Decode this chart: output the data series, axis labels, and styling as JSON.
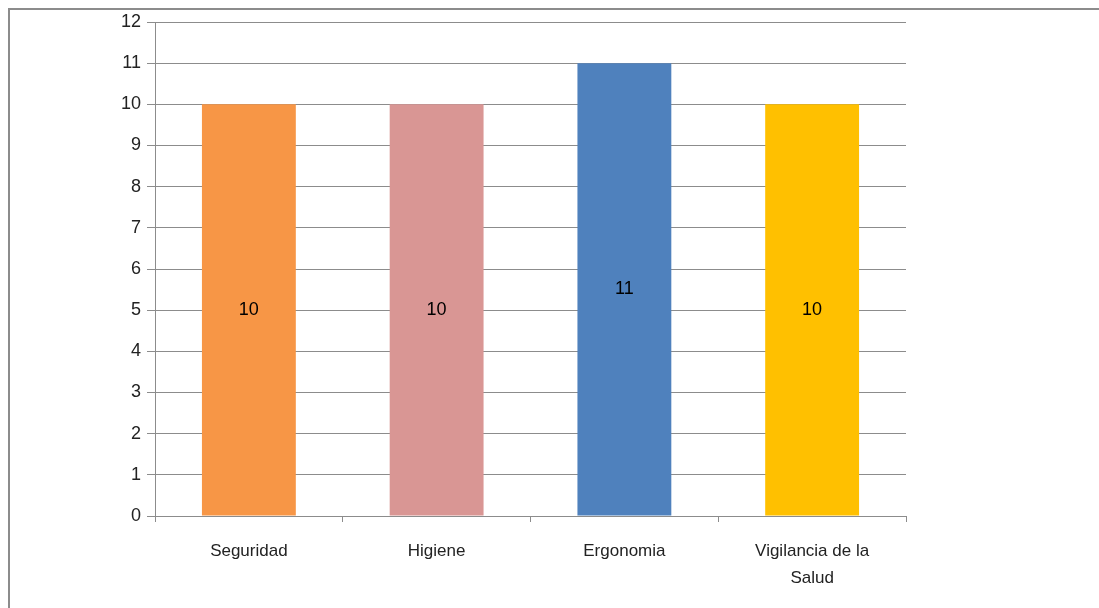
{
  "chart_data": {
    "type": "bar",
    "categories": [
      "Seguridad",
      "Higiene",
      "Ergonomia",
      "Vigilancia de la Salud"
    ],
    "values": [
      10,
      10,
      11,
      10
    ],
    "colors": [
      "#f79646",
      "#d99694",
      "#4f81bd",
      "#ffc000"
    ],
    "ylim": [
      0,
      12
    ],
    "yticks": [
      0,
      1,
      2,
      3,
      4,
      5,
      6,
      7,
      8,
      9,
      10,
      11,
      12
    ],
    "grid": "y",
    "data_labels": true,
    "legend": false
  }
}
